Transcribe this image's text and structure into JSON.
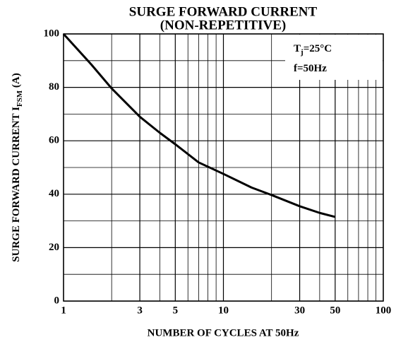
{
  "chart_data": {
    "type": "line",
    "title": [
      "SURGE FORWARD CURRENT",
      "(NON-REPETITIVE)"
    ],
    "xlabel": "NUMBER OF CYCLES AT 50Hz",
    "ylabel": [
      "SURGE FORWARD CURRENT  I",
      "FSM",
      "   (A)"
    ],
    "annotations": [
      [
        "T",
        "j",
        "=25°C"
      ],
      [
        "f=50Hz"
      ]
    ],
    "x": [
      1,
      1.5,
      2,
      3,
      4,
      5,
      7,
      10,
      15,
      20,
      30,
      40,
      50
    ],
    "series": [
      {
        "name": "IFSM",
        "color": "#000000",
        "values": [
          100,
          88.4,
          79.6,
          69,
          63,
          58.7,
          51.9,
          47.6,
          42.5,
          39.7,
          35.5,
          33,
          31.5
        ]
      }
    ],
    "xscale": "log",
    "xlim": [
      1,
      100
    ],
    "xticks": [
      1,
      3,
      5,
      10,
      30,
      50,
      100
    ],
    "xminor": [
      2,
      4,
      6,
      7,
      8,
      9,
      20,
      40,
      60,
      70,
      80,
      90
    ],
    "ylim": [
      0,
      100
    ],
    "yticks": [
      0,
      20,
      40,
      60,
      80,
      100
    ],
    "yminor": [
      10,
      30,
      50,
      70,
      90
    ],
    "grid": true
  }
}
